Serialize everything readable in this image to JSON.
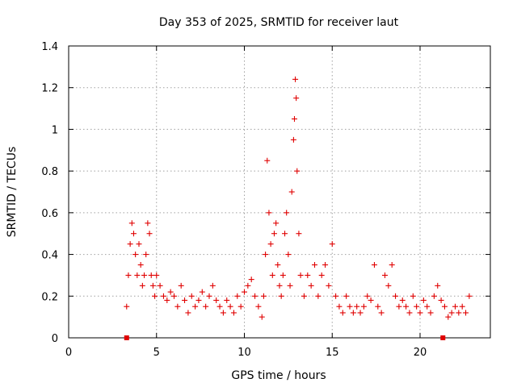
{
  "chart_data": {
    "type": "scatter",
    "title": "Day 353 of 2025, SRMTID for receiver laut",
    "xlabel": "GPS time / hours",
    "ylabel": "SRMTID / TECUs",
    "xlim": [
      0,
      24
    ],
    "ylim": [
      0,
      1.4
    ],
    "x_ticks": [
      0,
      5,
      10,
      15,
      20
    ],
    "x_tick_labels": [
      "0",
      "5",
      "10",
      "15",
      "20"
    ],
    "y_ticks": [
      0,
      0.2,
      0.4,
      0.6,
      0.8,
      1.0,
      1.2,
      1.4
    ],
    "y_tick_labels": [
      "0",
      "0.2",
      "0.4",
      "0.6",
      "0.8",
      "1",
      "1.2",
      "1.4"
    ],
    "grid": true,
    "marker": "plus",
    "color": "#e00000",
    "series": [
      {
        "name": "laut",
        "x": [
          3.3,
          3.4,
          3.5,
          3.6,
          3.7,
          3.8,
          3.9,
          4.0,
          4.1,
          4.2,
          4.3,
          4.4,
          4.5,
          4.6,
          4.7,
          4.8,
          4.9,
          5.0,
          5.2,
          5.4,
          5.6,
          5.8,
          6.0,
          6.2,
          6.4,
          6.6,
          6.8,
          7.0,
          7.2,
          7.4,
          7.6,
          7.8,
          8.0,
          8.2,
          8.4,
          8.6,
          8.8,
          9.0,
          9.2,
          9.4,
          9.6,
          9.8,
          10.0,
          10.2,
          10.4,
          10.6,
          10.8,
          11.0,
          11.1,
          11.2,
          11.3,
          11.4,
          11.5,
          11.6,
          11.7,
          11.8,
          11.9,
          12.0,
          12.1,
          12.2,
          12.3,
          12.4,
          12.5,
          12.6,
          12.7,
          12.8,
          12.85,
          12.9,
          12.95,
          13.0,
          13.1,
          13.2,
          13.4,
          13.6,
          13.8,
          14.0,
          14.2,
          14.4,
          14.6,
          14.8,
          15.0,
          15.2,
          15.4,
          15.6,
          15.8,
          16.0,
          16.2,
          16.4,
          16.6,
          16.8,
          17.0,
          17.2,
          17.4,
          17.6,
          17.8,
          18.0,
          18.2,
          18.4,
          18.6,
          18.8,
          19.0,
          19.2,
          19.4,
          19.6,
          19.8,
          20.0,
          20.2,
          20.4,
          20.6,
          20.8,
          21.0,
          21.2,
          21.4,
          21.6,
          21.8,
          22.0,
          22.2,
          22.4,
          22.6,
          22.8
        ],
        "y": [
          0.15,
          0.3,
          0.45,
          0.55,
          0.5,
          0.4,
          0.3,
          0.45,
          0.35,
          0.25,
          0.3,
          0.4,
          0.55,
          0.5,
          0.3,
          0.25,
          0.2,
          0.3,
          0.25,
          0.2,
          0.18,
          0.22,
          0.2,
          0.15,
          0.25,
          0.18,
          0.12,
          0.2,
          0.15,
          0.18,
          0.22,
          0.15,
          0.2,
          0.25,
          0.18,
          0.15,
          0.12,
          0.18,
          0.15,
          0.12,
          0.2,
          0.15,
          0.22,
          0.25,
          0.28,
          0.2,
          0.15,
          0.1,
          0.2,
          0.4,
          0.85,
          0.6,
          0.45,
          0.3,
          0.5,
          0.55,
          0.35,
          0.25,
          0.2,
          0.3,
          0.5,
          0.6,
          0.4,
          0.25,
          0.7,
          0.95,
          1.05,
          1.24,
          1.15,
          0.8,
          0.5,
          0.3,
          0.2,
          0.3,
          0.25,
          0.35,
          0.2,
          0.3,
          0.35,
          0.25,
          0.45,
          0.2,
          0.15,
          0.12,
          0.2,
          0.15,
          0.12,
          0.15,
          0.12,
          0.15,
          0.2,
          0.18,
          0.35,
          0.15,
          0.12,
          0.3,
          0.25,
          0.35,
          0.2,
          0.15,
          0.18,
          0.15,
          0.12,
          0.2,
          0.15,
          0.12,
          0.18,
          0.15,
          0.12,
          0.2,
          0.25,
          0.18,
          0.15,
          0.1,
          0.12,
          0.15,
          0.12,
          0.15,
          0.12,
          0.2
        ]
      }
    ],
    "x_markers": [
      3.3,
      21.3
    ]
  }
}
